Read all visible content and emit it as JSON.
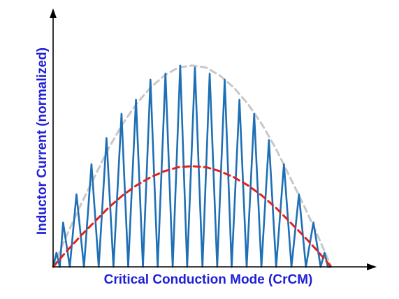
{
  "chart_data": {
    "type": "line",
    "xlabel": "Critical Conduction Mode (CrCM)",
    "ylabel": "Inductor Current (normalized)",
    "xlim": [
      0,
      1
    ],
    "ylim": [
      0,
      1.02
    ],
    "grid": false,
    "legend": "none",
    "colors": {
      "label": "#1f1fd6",
      "axis": "#000000",
      "inductor_current": "#1f6fb5",
      "peak_envelope": "#c8c8c8",
      "average_current": "#e0231f"
    },
    "series": [
      {
        "role": "inductor_current",
        "style": "solid",
        "x": [
          0.0,
          0.012,
          0.024,
          0.036,
          0.06,
          0.084,
          0.111,
          0.138,
          0.164,
          0.192,
          0.217,
          0.246,
          0.27,
          0.298,
          0.323,
          0.35,
          0.376,
          0.404,
          0.43,
          0.457,
          0.482,
          0.51,
          0.537,
          0.563,
          0.59,
          0.617,
          0.642,
          0.67,
          0.696,
          0.723,
          0.749,
          0.776,
          0.802,
          0.83,
          0.857,
          0.884,
          0.909,
          0.936,
          0.962,
          0.976,
          0.988,
          1.0
        ],
        "y": [
          0.0,
          0.07,
          0.0,
          0.22,
          0.0,
          0.36,
          0.0,
          0.51,
          0.0,
          0.64,
          0.0,
          0.76,
          0.0,
          0.83,
          0.0,
          0.93,
          0.0,
          0.96,
          0.0,
          1.0,
          0.0,
          0.99,
          0.0,
          0.96,
          0.0,
          0.93,
          0.0,
          0.83,
          0.0,
          0.76,
          0.0,
          0.63,
          0.0,
          0.51,
          0.0,
          0.36,
          0.0,
          0.22,
          0.0,
          0.07,
          0.0,
          0.0
        ]
      },
      {
        "role": "peak_envelope",
        "style": "dashed",
        "x": [
          0.0,
          0.05,
          0.1,
          0.15,
          0.2,
          0.25,
          0.3,
          0.35,
          0.4,
          0.45,
          0.5,
          0.55,
          0.6,
          0.65,
          0.7,
          0.75,
          0.8,
          0.85,
          0.9,
          0.95,
          1.0
        ],
        "y": [
          0.0,
          0.16,
          0.31,
          0.45,
          0.59,
          0.71,
          0.81,
          0.89,
          0.95,
          0.99,
          1.0,
          0.99,
          0.95,
          0.89,
          0.81,
          0.71,
          0.59,
          0.45,
          0.31,
          0.16,
          0.0
        ]
      },
      {
        "role": "average_current",
        "style": "dashed",
        "x": [
          0.0,
          0.05,
          0.1,
          0.15,
          0.2,
          0.25,
          0.3,
          0.35,
          0.4,
          0.45,
          0.5,
          0.55,
          0.6,
          0.65,
          0.7,
          0.75,
          0.8,
          0.85,
          0.9,
          0.95,
          1.0
        ],
        "y": [
          0.0,
          0.08,
          0.155,
          0.225,
          0.295,
          0.355,
          0.405,
          0.445,
          0.475,
          0.495,
          0.5,
          0.495,
          0.475,
          0.445,
          0.405,
          0.355,
          0.295,
          0.225,
          0.155,
          0.08,
          0.0
        ]
      }
    ]
  }
}
